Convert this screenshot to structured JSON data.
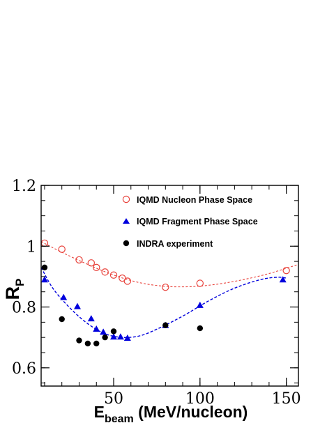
{
  "chart_data": {
    "type": "scatter",
    "xlabel": "E",
    "xlabel_sub": "beam",
    "xlabel_unit": " (MeV/nucleon)",
    "ylabel": "R",
    "ylabel_sub": "P",
    "xlim": [
      8,
      157
    ],
    "ylim": [
      0.54,
      1.2
    ],
    "xticks_major": [
      50,
      100,
      150
    ],
    "xticks_minor_step": 10,
    "yticks_major": [
      0.6,
      0.8,
      1.0,
      1.2
    ],
    "yticks_minor_step": 0.05,
    "x_tick_labels": [
      "50",
      "100",
      "150"
    ],
    "y_tick_labels": [
      "0.6",
      "0.8",
      "1",
      "1.2"
    ],
    "grid": false,
    "legend_position": "top-right",
    "series": [
      {
        "name": "IQMD Nucleon Phase Space",
        "marker": "open-circle",
        "color": "#e8413a",
        "points": [
          [
            10,
            1.01
          ],
          [
            20,
            0.99
          ],
          [
            30,
            0.955
          ],
          [
            37,
            0.945
          ],
          [
            40,
            0.93
          ],
          [
            45,
            0.915
          ],
          [
            50,
            0.905
          ],
          [
            55,
            0.895
          ],
          [
            58,
            0.885
          ],
          [
            80,
            0.865
          ],
          [
            100,
            0.878
          ],
          [
            150,
            0.92
          ]
        ],
        "fit": [
          [
            8,
            1.015
          ],
          [
            20,
            0.98
          ],
          [
            35,
            0.94
          ],
          [
            50,
            0.905
          ],
          [
            65,
            0.88
          ],
          [
            80,
            0.868
          ],
          [
            95,
            0.867
          ],
          [
            110,
            0.875
          ],
          [
            125,
            0.89
          ],
          [
            140,
            0.91
          ],
          [
            157,
            0.94
          ]
        ]
      },
      {
        "name": "IQMD Fragment Phase Space",
        "marker": "filled-triangle",
        "color": "#0000dd",
        "points": [
          [
            10,
            0.89
          ],
          [
            21,
            0.832
          ],
          [
            29,
            0.802
          ],
          [
            37,
            0.762
          ],
          [
            40,
            0.728
          ],
          [
            44,
            0.718
          ],
          [
            50,
            0.702
          ],
          [
            54,
            0.702
          ],
          [
            58,
            0.698
          ],
          [
            80,
            0.74
          ],
          [
            100,
            0.806
          ],
          [
            148,
            0.89
          ]
        ],
        "fit": [
          [
            8,
            0.93
          ],
          [
            15,
            0.86
          ],
          [
            25,
            0.795
          ],
          [
            35,
            0.745
          ],
          [
            45,
            0.712
          ],
          [
            55,
            0.7
          ],
          [
            65,
            0.705
          ],
          [
            75,
            0.727
          ],
          [
            90,
            0.77
          ],
          [
            105,
            0.82
          ],
          [
            120,
            0.862
          ],
          [
            135,
            0.89
          ],
          [
            145,
            0.898
          ],
          [
            150,
            0.895
          ]
        ]
      },
      {
        "name": "INDRA experiment",
        "marker": "filled-circle",
        "color": "#000000",
        "points": [
          [
            10,
            0.93
          ],
          [
            20,
            0.76
          ],
          [
            30,
            0.69
          ],
          [
            35,
            0.68
          ],
          [
            40,
            0.68
          ],
          [
            45,
            0.7
          ],
          [
            50,
            0.72
          ],
          [
            80,
            0.74
          ],
          [
            100,
            0.73
          ]
        ]
      }
    ]
  }
}
